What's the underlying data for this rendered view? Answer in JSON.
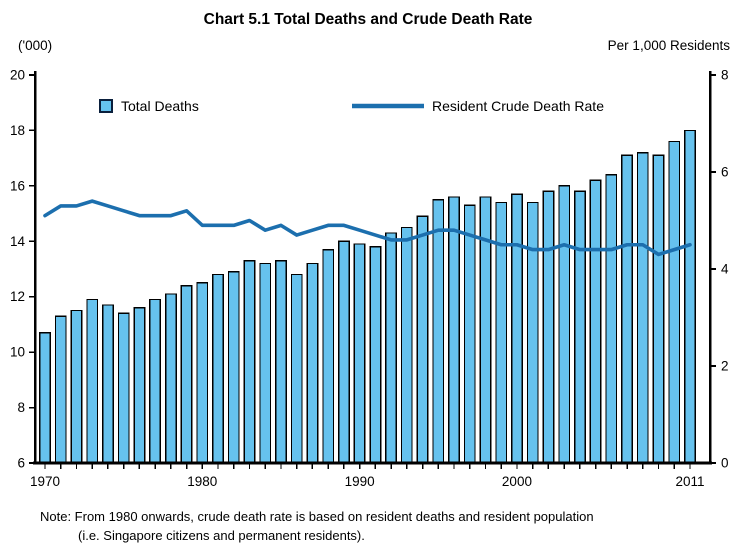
{
  "title": "Chart 5.1  Total Deaths and Crude Death Rate",
  "left_axis_unit": "('000)",
  "right_axis_unit": "Per 1,000 Residents",
  "legend": {
    "bars_label": "Total Deaths",
    "line_label": "Resident Crude Death Rate"
  },
  "note": {
    "line1": "Note: From 1980 onwards, crude death rate is based on resident deaths and resident population",
    "line2": "(i.e. Singapore citizens and permanent residents)."
  },
  "colors": {
    "bar_fill": "#66C2EE",
    "bar_stroke": "#000000",
    "line": "#1C6FAE",
    "axis": "#000000",
    "text": "#000000"
  },
  "chart_data": {
    "type": "bar+line",
    "title": "Chart 5.1  Total Deaths and Crude Death Rate",
    "x": [
      1970,
      1971,
      1972,
      1973,
      1974,
      1975,
      1976,
      1977,
      1978,
      1979,
      1980,
      1981,
      1982,
      1983,
      1984,
      1985,
      1986,
      1987,
      1988,
      1989,
      1990,
      1991,
      1992,
      1993,
      1994,
      1995,
      1996,
      1997,
      1998,
      1999,
      2000,
      2001,
      2002,
      2003,
      2004,
      2005,
      2006,
      2007,
      2008,
      2009,
      2010,
      2011
    ],
    "series": [
      {
        "name": "Total Deaths",
        "type": "bar",
        "axis": "left",
        "unit": "'000",
        "values": [
          10.7,
          11.3,
          11.5,
          11.9,
          11.7,
          11.4,
          11.6,
          11.9,
          12.1,
          12.4,
          12.5,
          12.8,
          12.9,
          13.3,
          13.2,
          13.3,
          12.8,
          13.2,
          13.7,
          14.0,
          13.9,
          13.8,
          14.3,
          14.5,
          14.9,
          15.5,
          15.6,
          15.3,
          15.6,
          15.4,
          15.7,
          15.4,
          15.8,
          16.0,
          15.8,
          16.2,
          16.4,
          17.1,
          17.2,
          17.1,
          17.6,
          18.0
        ]
      },
      {
        "name": "Resident Crude Death Rate",
        "type": "line",
        "axis": "right",
        "unit": "per 1,000 residents",
        "values": [
          5.1,
          5.3,
          5.3,
          5.4,
          5.3,
          5.2,
          5.1,
          5.1,
          5.1,
          5.2,
          4.9,
          4.9,
          4.9,
          5.0,
          4.8,
          4.9,
          4.7,
          4.8,
          4.9,
          4.9,
          4.8,
          4.7,
          4.6,
          4.6,
          4.7,
          4.8,
          4.8,
          4.7,
          4.6,
          4.5,
          4.5,
          4.4,
          4.4,
          4.5,
          4.4,
          4.4,
          4.4,
          4.5,
          4.5,
          4.3,
          4.4,
          4.5
        ]
      }
    ],
    "left_axis": {
      "label": "('000)",
      "min": 6,
      "max": 20,
      "tick_step": 2
    },
    "right_axis": {
      "label": "Per 1,000 Residents",
      "min": 0,
      "max": 8,
      "tick_step": 2
    },
    "x_tick_labels": [
      "1970",
      "1980",
      "1990",
      "2000",
      "2011"
    ],
    "grid": false,
    "legend_position": "top-inside"
  }
}
